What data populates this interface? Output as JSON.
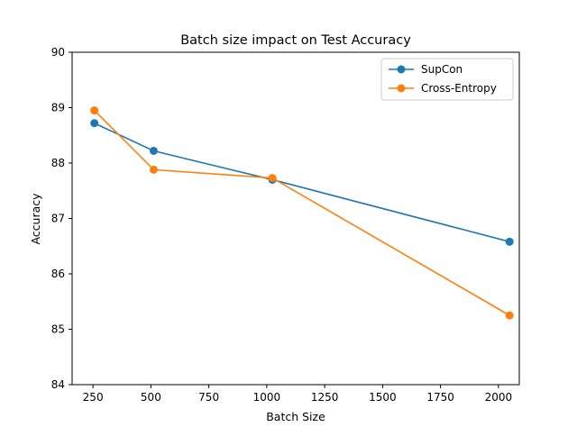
{
  "chart_data": {
    "type": "line",
    "title": "Batch size impact on Test Accuracy",
    "xlabel": "Batch Size",
    "ylabel": "Accuracy",
    "xlim": [
      160,
      2090
    ],
    "ylim": [
      84,
      90
    ],
    "x_ticks": [
      250,
      500,
      750,
      1000,
      1250,
      1500,
      1750,
      2000
    ],
    "y_ticks": [
      84,
      85,
      86,
      87,
      88,
      89,
      90
    ],
    "grid": false,
    "legend_position": "top-right",
    "series": [
      {
        "name": "SupCon",
        "color": "#1f77b4",
        "marker": "circle",
        "x": [
          256,
          512,
          1024,
          2048
        ],
        "y": [
          88.72,
          88.22,
          87.7,
          86.58
        ]
      },
      {
        "name": "Cross-Entropy",
        "color": "#ff7f0e",
        "marker": "circle",
        "x": [
          256,
          512,
          1024,
          2048
        ],
        "y": [
          88.95,
          87.88,
          87.73,
          85.25
        ]
      }
    ]
  }
}
